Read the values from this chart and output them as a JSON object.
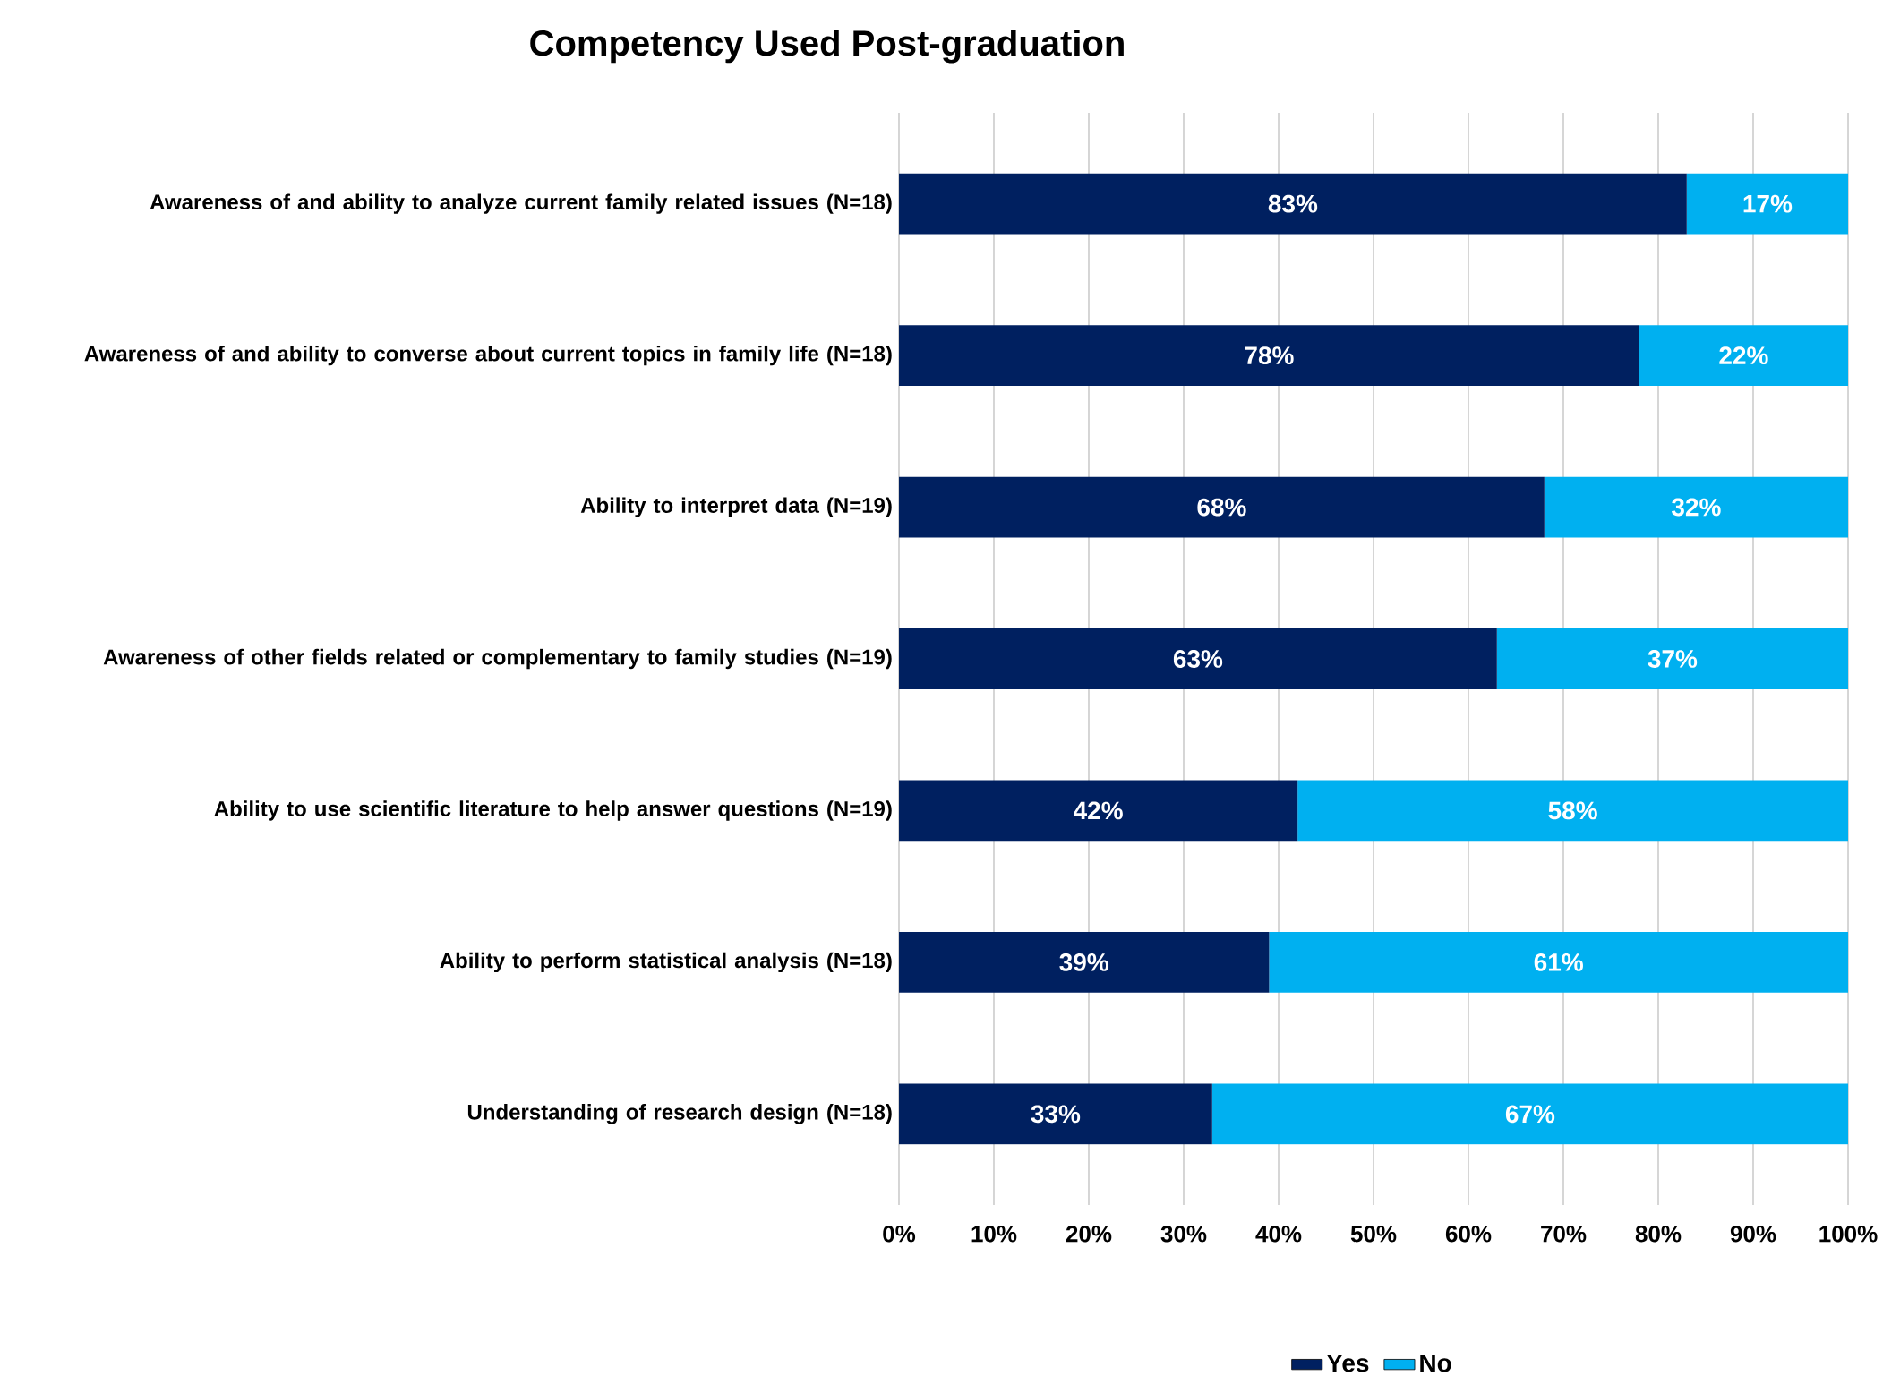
{
  "chart_data": {
    "type": "bar",
    "orientation": "horizontal",
    "stacked": true,
    "title": "Competency Used Post-graduation",
    "categories": [
      "Awareness of and ability to analyze current family related issues (N=18)",
      "Awareness of and ability to converse about current topics in family life (N=18)",
      "Ability to interpret data (N=19)",
      "Awareness of other fields related or complementary to family studies (N=19)",
      "Ability to use scientific literature to help answer questions (N=19)",
      "Ability to perform statistical analysis (N=18)",
      "Understanding of research design (N=18)"
    ],
    "series": [
      {
        "name": "Yes",
        "color": "#002060",
        "values": [
          83,
          78,
          68,
          63,
          42,
          39,
          33
        ],
        "value_labels": [
          "83%",
          "78%",
          "68%",
          "63%",
          "42%",
          "39%",
          "33%"
        ]
      },
      {
        "name": "No",
        "color": "#00b0f0",
        "values": [
          17,
          22,
          32,
          37,
          58,
          61,
          67
        ],
        "value_labels": [
          "17%",
          "22%",
          "32%",
          "37%",
          "58%",
          "61%",
          "67%"
        ]
      }
    ],
    "xlim": [
      0,
      100
    ],
    "xticks": [
      {
        "value": 0,
        "label": "0%"
      },
      {
        "value": 10,
        "label": "10%"
      },
      {
        "value": 20,
        "label": "20%"
      },
      {
        "value": 30,
        "label": "30%"
      },
      {
        "value": 40,
        "label": "40%"
      },
      {
        "value": 50,
        "label": "50%"
      },
      {
        "value": 60,
        "label": "60%"
      },
      {
        "value": 70,
        "label": "70%"
      },
      {
        "value": 80,
        "label": "80%"
      },
      {
        "value": 90,
        "label": "90%"
      },
      {
        "value": 100,
        "label": "100%"
      }
    ],
    "grid": "x",
    "legend": "bottom"
  }
}
